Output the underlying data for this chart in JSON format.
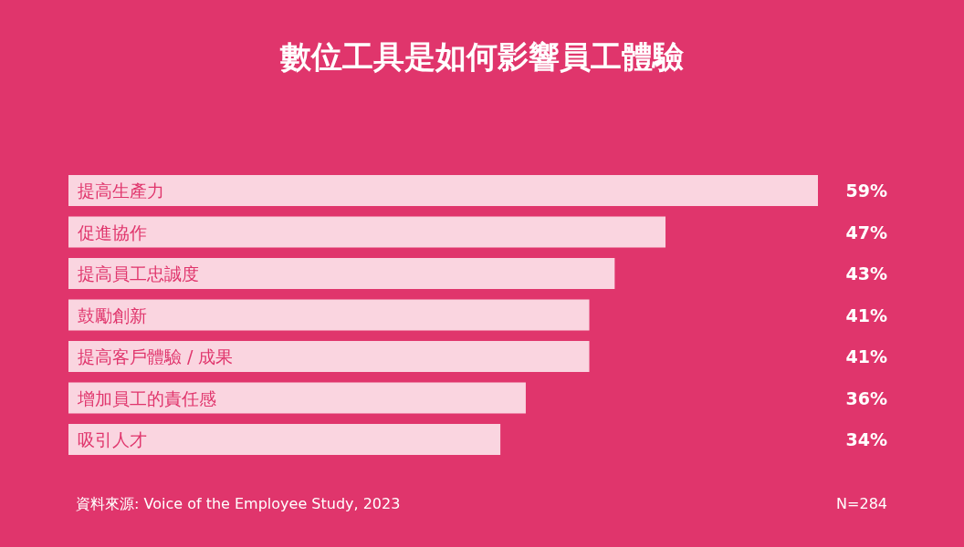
{
  "chart_data": {
    "type": "bar",
    "orientation": "horizontal",
    "title": "數位工具是如何影響員工體驗",
    "categories": [
      "提高生產力",
      "促進協作",
      "提高員工忠誠度",
      "鼓勵創新",
      "提高客戶體驗 / 成果",
      "增加員工的責任感",
      "吸引人才"
    ],
    "values": [
      59,
      47,
      43,
      41,
      41,
      36,
      34
    ],
    "value_labels": [
      "59%",
      "47%",
      "43%",
      "41%",
      "41%",
      "36%",
      "34%"
    ],
    "color": "#fad5e0",
    "annotations": [
      "資料來源: Voice of the Employee Study, 2023",
      "N=284"
    ]
  }
}
